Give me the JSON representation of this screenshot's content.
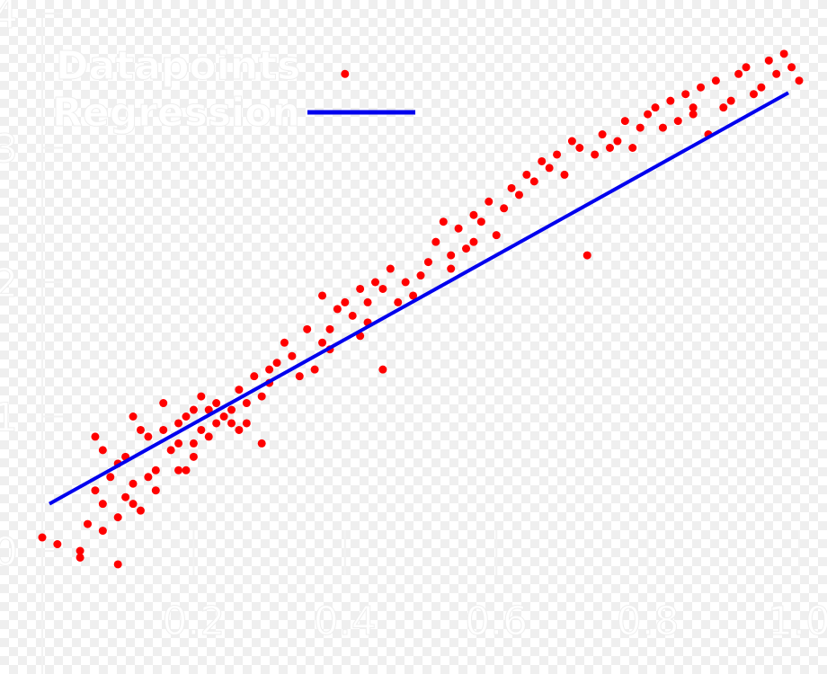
{
  "chart_data": {
    "type": "scatter",
    "title": "",
    "xlabel": "",
    "ylabel": "",
    "xlim": [
      0,
      1.0
    ],
    "ylim": [
      0,
      4
    ],
    "grid": false,
    "legend_position": "top-left",
    "x_ticks": [
      0.2,
      0.4,
      0.6,
      0.8,
      1.0
    ],
    "x_tick_labels": [
      "0.2",
      "0.4",
      "0.6",
      "0.8",
      "1.0"
    ],
    "y_ticks": [
      0,
      1,
      2,
      3,
      4
    ],
    "y_tick_labels": [
      "0",
      "1",
      "2",
      "3",
      "4"
    ],
    "legend": [
      {
        "label": "Datapoints",
        "kind": "marker",
        "color": "#ff0000"
      },
      {
        "label": "Regression",
        "kind": "line",
        "color": "#0000ee"
      }
    ],
    "colors": {
      "points": "#ff0000",
      "line": "#0000ee",
      "axis_text": "#ffffff"
    },
    "series": [
      {
        "name": "Datapoints",
        "kind": "scatter",
        "x": [
          0.0,
          0.02,
          0.05,
          0.05,
          0.06,
          0.07,
          0.07,
          0.08,
          0.08,
          0.08,
          0.09,
          0.1,
          0.1,
          0.1,
          0.11,
          0.11,
          0.12,
          0.12,
          0.12,
          0.13,
          0.13,
          0.14,
          0.14,
          0.15,
          0.15,
          0.16,
          0.16,
          0.17,
          0.18,
          0.18,
          0.18,
          0.19,
          0.19,
          0.2,
          0.2,
          0.2,
          0.21,
          0.21,
          0.22,
          0.22,
          0.23,
          0.23,
          0.24,
          0.25,
          0.25,
          0.26,
          0.26,
          0.27,
          0.27,
          0.28,
          0.29,
          0.29,
          0.3,
          0.3,
          0.31,
          0.32,
          0.33,
          0.34,
          0.35,
          0.36,
          0.37,
          0.37,
          0.38,
          0.38,
          0.39,
          0.4,
          0.4,
          0.41,
          0.42,
          0.42,
          0.43,
          0.43,
          0.44,
          0.45,
          0.45,
          0.46,
          0.47,
          0.48,
          0.49,
          0.5,
          0.51,
          0.52,
          0.53,
          0.54,
          0.54,
          0.55,
          0.56,
          0.57,
          0.57,
          0.58,
          0.59,
          0.6,
          0.61,
          0.62,
          0.63,
          0.64,
          0.65,
          0.66,
          0.67,
          0.68,
          0.69,
          0.7,
          0.71,
          0.72,
          0.73,
          0.74,
          0.75,
          0.76,
          0.77,
          0.78,
          0.79,
          0.8,
          0.81,
          0.82,
          0.83,
          0.84,
          0.85,
          0.86,
          0.86,
          0.87,
          0.88,
          0.89,
          0.9,
          0.91,
          0.92,
          0.93,
          0.94,
          0.95,
          0.96,
          0.97,
          0.98,
          0.99,
          1.0
        ],
        "y": [
          0.1,
          0.05,
          0.0,
          -0.05,
          0.2,
          0.45,
          0.85,
          0.75,
          0.15,
          0.35,
          0.55,
          0.65,
          0.25,
          -0.1,
          0.7,
          0.4,
          0.35,
          0.5,
          1.0,
          0.9,
          0.3,
          0.55,
          0.85,
          0.45,
          0.6,
          0.9,
          1.1,
          0.75,
          0.8,
          0.6,
          0.95,
          1.0,
          0.6,
          1.05,
          0.8,
          0.7,
          0.9,
          1.15,
          1.05,
          0.85,
          0.95,
          1.1,
          1.0,
          1.05,
          0.95,
          1.2,
          0.9,
          1.1,
          0.95,
          1.3,
          1.15,
          0.8,
          1.25,
          1.35,
          1.4,
          1.55,
          1.45,
          1.3,
          1.65,
          1.35,
          1.55,
          1.9,
          1.65,
          1.5,
          1.8,
          1.85,
          3.55,
          1.75,
          1.6,
          1.95,
          1.85,
          1.7,
          2.0,
          1.95,
          1.35,
          2.1,
          1.85,
          2.0,
          1.9,
          2.05,
          2.15,
          2.3,
          2.45,
          2.2,
          2.1,
          2.4,
          2.25,
          2.5,
          2.3,
          2.45,
          2.6,
          2.35,
          2.55,
          2.7,
          2.65,
          2.8,
          2.75,
          2.9,
          2.85,
          2.95,
          2.8,
          3.05,
          3.0,
          2.2,
          2.95,
          3.1,
          3.0,
          3.05,
          3.2,
          3.0,
          3.15,
          3.25,
          3.3,
          3.15,
          3.35,
          3.2,
          3.4,
          3.3,
          3.25,
          3.45,
          3.1,
          3.5,
          3.3,
          3.35,
          3.55,
          3.6,
          3.4,
          3.45,
          3.65,
          3.55,
          3.7,
          3.6,
          3.5
        ]
      },
      {
        "name": "Regression",
        "kind": "line",
        "x": [
          0.0,
          1.0
        ],
        "y": [
          0.25,
          3.55
        ]
      }
    ]
  }
}
